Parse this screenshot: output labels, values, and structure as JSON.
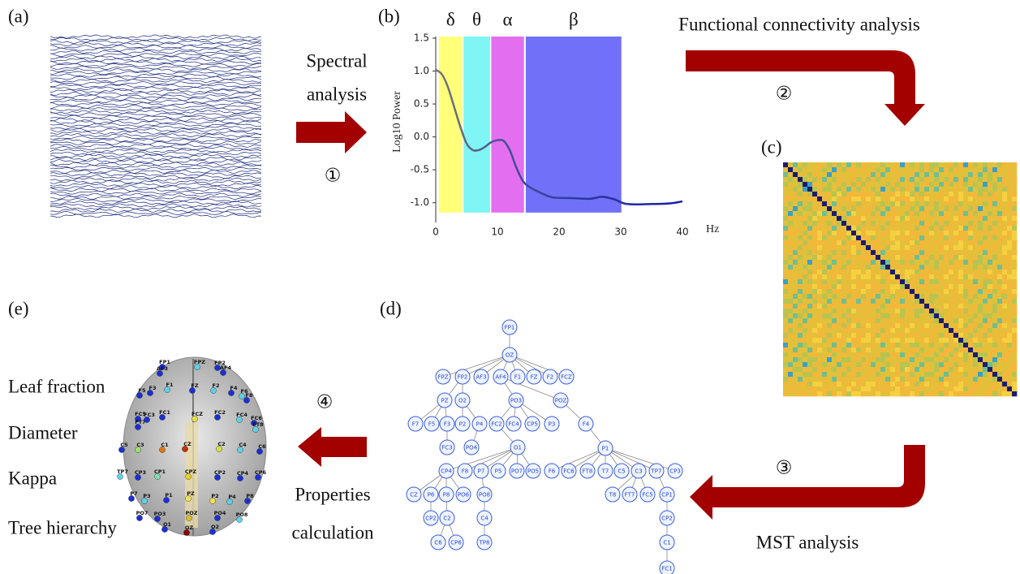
{
  "panels": {
    "a": "(a)",
    "b": "(b)",
    "c": "(c)",
    "d": "(d)",
    "e": "(e)"
  },
  "steps": [
    {
      "number": "①",
      "lines": [
        "Spectral",
        "analysis"
      ]
    },
    {
      "number": "②",
      "lines": [
        "Functional connectivity analysis"
      ]
    },
    {
      "number": "③",
      "lines": [
        "MST analysis"
      ]
    },
    {
      "number": "④",
      "lines": [
        "Properties",
        "calculation"
      ]
    }
  ],
  "spectrum": {
    "y_label": "Log10 Power",
    "x_label": "Hz",
    "xlim": [
      0,
      40
    ],
    "ylim": [
      -1.3,
      1.5
    ],
    "xticks": [
      0,
      10,
      20,
      30,
      40
    ],
    "yticks": [
      {
        "value": 1.5,
        "label": "1.5"
      },
      {
        "value": 1.0,
        "label": "1.0"
      },
      {
        "value": 0.5,
        "label": "0.5"
      },
      {
        "value": 0.0,
        "label": "0.0"
      },
      {
        "value": -0.5,
        "label": "-0.5"
      },
      {
        "value": -1.0,
        "label": "-1.0"
      }
    ],
    "bands": [
      {
        "label": "δ",
        "range": [
          0.5,
          4.3
        ],
        "color": "#ffff7a"
      },
      {
        "label": "θ",
        "range": [
          4.5,
          8.8
        ],
        "color": "#7ff5f5"
      },
      {
        "label": "α",
        "range": [
          9.0,
          14.3
        ],
        "color": "#e46ef0"
      },
      {
        "label": "β",
        "range": [
          14.6,
          30.1
        ],
        "color": "#7070f8"
      }
    ],
    "band_floor": -1.15,
    "freq": [
      0,
      1,
      2,
      3,
      4,
      5,
      6,
      7,
      8,
      9,
      10,
      11,
      12,
      13,
      14,
      15,
      17,
      19,
      22,
      25,
      27,
      29,
      31,
      35,
      38,
      40
    ],
    "power": [
      1.02,
      0.95,
      0.75,
      0.45,
      0.15,
      -0.1,
      -0.2,
      -0.2,
      -0.15,
      -0.08,
      -0.05,
      -0.06,
      -0.2,
      -0.45,
      -0.65,
      -0.75,
      -0.85,
      -0.92,
      -0.93,
      -0.94,
      -0.91,
      -0.95,
      -1.02,
      -1.02,
      -1.01,
      -0.98
    ]
  },
  "mst": {
    "nodes": [
      {
        "label": "FP1",
        "parent": null
      },
      {
        "label": "OZ",
        "parent": 0
      },
      {
        "label": "FPZ",
        "parent": 1
      },
      {
        "label": "FP2",
        "parent": 1
      },
      {
        "label": "AF3",
        "parent": 1
      },
      {
        "label": "AF4",
        "parent": 1
      },
      {
        "label": "F1",
        "parent": 1
      },
      {
        "label": "FZ",
        "parent": 1
      },
      {
        "label": "F2",
        "parent": 1
      },
      {
        "label": "FCZ",
        "parent": 1
      },
      {
        "label": "PZ",
        "parent": 3
      },
      {
        "label": "O2",
        "parent": 3
      },
      {
        "label": "PO3",
        "parent": 5
      },
      {
        "label": "POZ",
        "parent": 5
      },
      {
        "label": "F7",
        "parent": 10
      },
      {
        "label": "F5",
        "parent": 10
      },
      {
        "label": "F3",
        "parent": 10
      },
      {
        "label": "P2",
        "parent": 11
      },
      {
        "label": "P4",
        "parent": 11
      },
      {
        "label": "FC2",
        "parent": 12
      },
      {
        "label": "FC4",
        "parent": 12
      },
      {
        "label": "CP5",
        "parent": 12
      },
      {
        "label": "P3",
        "parent": 12
      },
      {
        "label": "F4",
        "parent": 13
      },
      {
        "label": "FC3",
        "parent": 16
      },
      {
        "label": "PO4",
        "parent": 18
      },
      {
        "label": "O1",
        "parent": 19
      },
      {
        "label": "P1",
        "parent": 23
      },
      {
        "label": "CP4",
        "parent": 26
      },
      {
        "label": "F8",
        "parent": 26
      },
      {
        "label": "P7",
        "parent": 26
      },
      {
        "label": "P5",
        "parent": 26
      },
      {
        "label": "PO7",
        "parent": 26
      },
      {
        "label": "PO5",
        "parent": 26
      },
      {
        "label": "F6",
        "parent": 27
      },
      {
        "label": "FC6",
        "parent": 27
      },
      {
        "label": "FT8",
        "parent": 27
      },
      {
        "label": "T7",
        "parent": 27
      },
      {
        "label": "C5",
        "parent": 27
      },
      {
        "label": "C3",
        "parent": 27
      },
      {
        "label": "TP7",
        "parent": 27
      },
      {
        "label": "CP3",
        "parent": 27
      },
      {
        "label": "CZ",
        "parent": 28
      },
      {
        "label": "P6",
        "parent": 28
      },
      {
        "label": "P8",
        "parent": 28
      },
      {
        "label": "PO6",
        "parent": 28
      },
      {
        "label": "PO8",
        "parent": 30
      },
      {
        "label": "T8",
        "parent": 39
      },
      {
        "label": "FT7",
        "parent": 39
      },
      {
        "label": "FC5",
        "parent": 39
      },
      {
        "label": "CP1",
        "parent": 40
      },
      {
        "label": "CP2",
        "parent": 43
      },
      {
        "label": "C2",
        "parent": 44
      },
      {
        "label": "C4",
        "parent": 46
      },
      {
        "label": "CP2",
        "parent": 50
      },
      {
        "label": "C6",
        "parent": 52
      },
      {
        "label": "CP6",
        "parent": 52
      },
      {
        "label": "TP8",
        "parent": 53
      },
      {
        "label": "C1",
        "parent": 54
      },
      {
        "label": "FC1",
        "parent": 58
      }
    ]
  },
  "brain": {
    "electrodes": [
      "FP1",
      "FPZ",
      "FP2",
      "AF3",
      "AF4",
      "F5",
      "F3",
      "F1",
      "FZ",
      "F2",
      "F4",
      "F6",
      "F8",
      "FC5",
      "FT7",
      "FC3",
      "FC1",
      "FCZ",
      "FC2",
      "FC4",
      "FC6",
      "FT8",
      "C5",
      "C3",
      "C1",
      "CZ",
      "C2",
      "C4",
      "C6",
      "TP7",
      "CP3",
      "CP1",
      "CPZ",
      "CP2",
      "CP4",
      "CP6",
      "P7",
      "P3",
      "P1",
      "PZ",
      "P2",
      "P4",
      "P8",
      "PO7",
      "PO3",
      "POZ",
      "PO4",
      "PO8",
      "O1",
      "OZ",
      "O2"
    ]
  },
  "properties": [
    "Leaf fraction",
    "Diameter",
    "Kappa",
    "Tree hierarchy"
  ]
}
